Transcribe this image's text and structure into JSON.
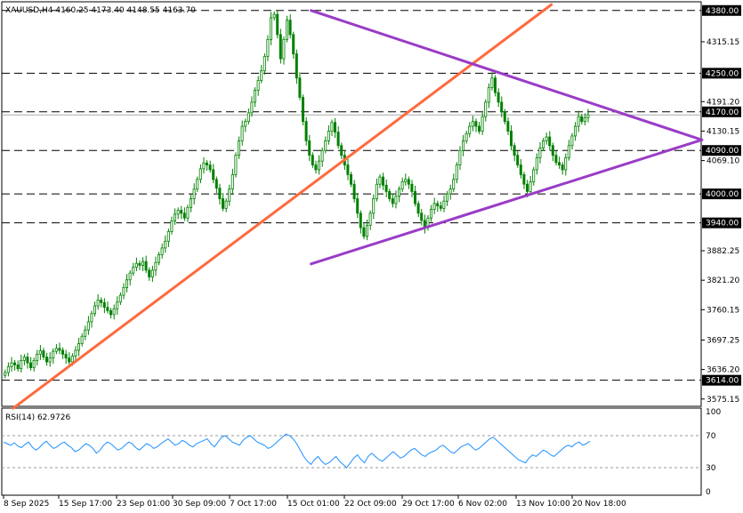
{
  "chart_data": {
    "type": "candlestick",
    "symbol_header": "XAUUSD,H4  4160.25 4173.40 4148.55 4163.70",
    "price_axis": {
      "ylim": [
        3560,
        4398
      ],
      "ticks": [
        "4315.15",
        "4191.20",
        "4130.15",
        "4069.10",
        "3882.25",
        "3821.20",
        "3760.15",
        "3697.25",
        "3636.20",
        "3575.15"
      ],
      "current_price": 4163.7
    },
    "levels": [
      {
        "label": "4380.00",
        "value": 4380.0,
        "color": "#000000"
      },
      {
        "label": "4250.00",
        "value": 4250.0,
        "color": "#000000"
      },
      {
        "label": "4170.00",
        "value": 4170.0,
        "color": "#000000"
      },
      {
        "label": "4090.00",
        "value": 4090.0,
        "color": "#000000"
      },
      {
        "label": "4000.00",
        "value": 4000.0,
        "color": "#000000"
      },
      {
        "label": "3940.00",
        "value": 3940.0,
        "color": "#000000"
      },
      {
        "label": "3614.00",
        "value": 3614.0,
        "color": "#000000"
      }
    ],
    "x_ticks": [
      "8 Sep 2025",
      "15 Sep 17:00",
      "23 Sep 01:00",
      "30 Sep 09:00",
      "7 Oct 17:00",
      "15 Oct 01:00",
      "22 Oct 09:00",
      "29 Oct 17:00",
      "6 Nov 02:00",
      "13 Nov 10:00",
      "20 Nov 18:00"
    ],
    "closes": [
      3630,
      3642,
      3650,
      3646,
      3638,
      3655,
      3662,
      3650,
      3640,
      3655,
      3668,
      3675,
      3662,
      3652,
      3660,
      3674,
      3680,
      3676,
      3668,
      3660,
      3652,
      3664,
      3676,
      3690,
      3705,
      3718,
      3735,
      3752,
      3768,
      3780,
      3775,
      3765,
      3758,
      3750,
      3762,
      3776,
      3790,
      3806,
      3822,
      3836,
      3848,
      3856,
      3852,
      3860,
      3842,
      3828,
      3842,
      3858,
      3874,
      3888,
      3902,
      3922,
      3944,
      3958,
      3966,
      3960,
      3950,
      3972,
      3990,
      4010,
      4030,
      4052,
      4064,
      4060,
      4050,
      4030,
      4012,
      3990,
      3970,
      3985,
      4010,
      4040,
      4080,
      4110,
      4140,
      4150,
      4168,
      4190,
      4215,
      4235,
      4255,
      4285,
      4320,
      4365,
      4372,
      4330,
      4280,
      4320,
      4360,
      4330,
      4290,
      4240,
      4200,
      4150,
      4110,
      4080,
      4060,
      4050,
      4068,
      4090,
      4110,
      4130,
      4148,
      4128,
      4100,
      4080,
      4060,
      4040,
      4020,
      3990,
      3960,
      3930,
      3912,
      3935,
      3960,
      3990,
      4020,
      4035,
      4018,
      4005,
      3990,
      3980,
      3995,
      4010,
      4025,
      4030,
      4020,
      4005,
      3980,
      3960,
      3945,
      3930,
      3950,
      3968,
      3980,
      3975,
      3970,
      3985,
      4000,
      4010,
      4030,
      4060,
      4090,
      4110,
      4125,
      4140,
      4150,
      4140,
      4130,
      4160,
      4190,
      4220,
      4240,
      4210,
      4190,
      4170,
      4150,
      4130,
      4100,
      4080,
      4060,
      4040,
      4020,
      4005,
      4025,
      4050,
      4075,
      4095,
      4110,
      4118,
      4100,
      4080,
      4065,
      4060,
      4050,
      4075,
      4100,
      4120,
      4140,
      4160,
      4150,
      4158,
      4164
    ],
    "rsi": {
      "label": "RSI(14) 62.9726",
      "ylim": [
        0,
        100
      ],
      "ticks": [
        "100",
        "70",
        "30",
        "0"
      ],
      "levels": [
        70,
        30
      ],
      "values": [
        62,
        60,
        58,
        61,
        57,
        55,
        59,
        62,
        56,
        52,
        55,
        60,
        63,
        58,
        54,
        56,
        60,
        62,
        58,
        55,
        50,
        52,
        56,
        60,
        58,
        54,
        48,
        52,
        58,
        62,
        60,
        56,
        52,
        54,
        58,
        62,
        60,
        55,
        52,
        56,
        60,
        58,
        54,
        56,
        60,
        63,
        66,
        62,
        58,
        60,
        64,
        62,
        58,
        56,
        60,
        62,
        64,
        66,
        60,
        56,
        62,
        68,
        70,
        66,
        62,
        60,
        58,
        64,
        68,
        70,
        66,
        62,
        60,
        58,
        54,
        56,
        60,
        64,
        68,
        72,
        70,
        66,
        60,
        52,
        44,
        38,
        34,
        40,
        44,
        38,
        34,
        36,
        40,
        44,
        38,
        34,
        30,
        36,
        42,
        46,
        40,
        36,
        44,
        48,
        44,
        40,
        38,
        42,
        46,
        50,
        46,
        42,
        44,
        48,
        52,
        54,
        50,
        46,
        44,
        48,
        50,
        52,
        56,
        58,
        54,
        50,
        48,
        52,
        56,
        58,
        60,
        56,
        52,
        54,
        58,
        62,
        66,
        68,
        64,
        60,
        56,
        52,
        48,
        44,
        40,
        38,
        36,
        42,
        46,
        44,
        48,
        52,
        50,
        46,
        44,
        48,
        52,
        56,
        58,
        56,
        60,
        62,
        58,
        60,
        63
      ]
    },
    "trendlines": [
      {
        "name": "rising-support",
        "color": "#ff6a3d",
        "from": {
          "bar": 3,
          "price": 3556
        },
        "to": {
          "bar": 171,
          "price": 4392
        }
      },
      {
        "name": "descending-resistance",
        "color": "#9a3cc7",
        "from": {
          "bar": 96,
          "price": 4380
        },
        "to": {
          "bar": 218,
          "price": 4112
        }
      },
      {
        "name": "ascending-support",
        "color": "#9a3cc7",
        "from": {
          "bar": 96,
          "price": 3855
        },
        "to": {
          "bar": 218,
          "price": 4112
        }
      }
    ],
    "colors": {
      "candle": "#008000",
      "grid": "#000000",
      "level_label_bg": "#000000",
      "rsi_line": "#1e90ff"
    }
  }
}
